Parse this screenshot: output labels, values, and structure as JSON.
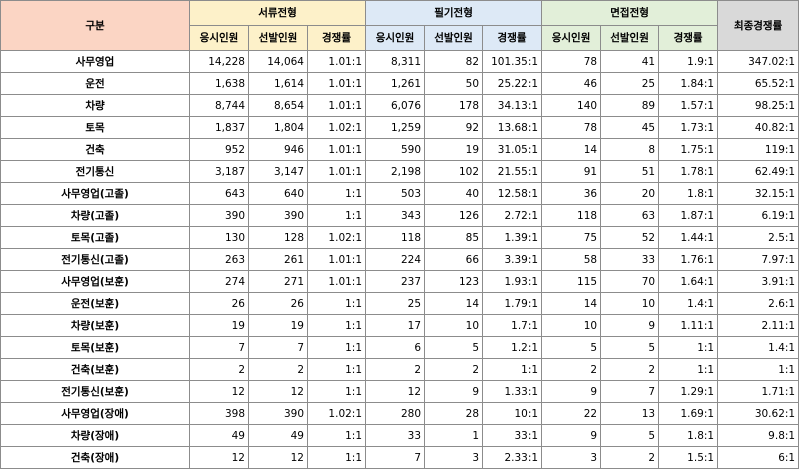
{
  "table": {
    "header": {
      "category": "구분",
      "groups": [
        "서류전형",
        "필기전형",
        "면접전형"
      ],
      "final": "최종경쟁률",
      "subcolumns": [
        "응시인원",
        "선발인원",
        "경쟁률"
      ]
    },
    "rows": [
      {
        "category": "사무영업",
        "doc": [
          "14,228",
          "14,064",
          "1.01:1"
        ],
        "written": [
          "8,311",
          "82",
          "101.35:1"
        ],
        "interview": [
          "78",
          "41",
          "1.9:1"
        ],
        "final": "347.02:1"
      },
      {
        "category": "운전",
        "doc": [
          "1,638",
          "1,614",
          "1.01:1"
        ],
        "written": [
          "1,261",
          "50",
          "25.22:1"
        ],
        "interview": [
          "46",
          "25",
          "1.84:1"
        ],
        "final": "65.52:1"
      },
      {
        "category": "차량",
        "doc": [
          "8,744",
          "8,654",
          "1.01:1"
        ],
        "written": [
          "6,076",
          "178",
          "34.13:1"
        ],
        "interview": [
          "140",
          "89",
          "1.57:1"
        ],
        "final": "98.25:1"
      },
      {
        "category": "토목",
        "doc": [
          "1,837",
          "1,804",
          "1.02:1"
        ],
        "written": [
          "1,259",
          "92",
          "13.68:1"
        ],
        "interview": [
          "78",
          "45",
          "1.73:1"
        ],
        "final": "40.82:1"
      },
      {
        "category": "건축",
        "doc": [
          "952",
          "946",
          "1.01:1"
        ],
        "written": [
          "590",
          "19",
          "31.05:1"
        ],
        "interview": [
          "14",
          "8",
          "1.75:1"
        ],
        "final": "119:1"
      },
      {
        "category": "전기통신",
        "doc": [
          "3,187",
          "3,147",
          "1.01:1"
        ],
        "written": [
          "2,198",
          "102",
          "21.55:1"
        ],
        "interview": [
          "91",
          "51",
          "1.78:1"
        ],
        "final": "62.49:1"
      },
      {
        "category": "사무영업(고졸)",
        "doc": [
          "643",
          "640",
          "1:1"
        ],
        "written": [
          "503",
          "40",
          "12.58:1"
        ],
        "interview": [
          "36",
          "20",
          "1.8:1"
        ],
        "final": "32.15:1"
      },
      {
        "category": "차량(고졸)",
        "doc": [
          "390",
          "390",
          "1:1"
        ],
        "written": [
          "343",
          "126",
          "2.72:1"
        ],
        "interview": [
          "118",
          "63",
          "1.87:1"
        ],
        "final": "6.19:1"
      },
      {
        "category": "토목(고졸)",
        "doc": [
          "130",
          "128",
          "1.02:1"
        ],
        "written": [
          "118",
          "85",
          "1.39:1"
        ],
        "interview": [
          "75",
          "52",
          "1.44:1"
        ],
        "final": "2.5:1"
      },
      {
        "category": "전기통신(고졸)",
        "doc": [
          "263",
          "261",
          "1.01:1"
        ],
        "written": [
          "224",
          "66",
          "3.39:1"
        ],
        "interview": [
          "58",
          "33",
          "1.76:1"
        ],
        "final": "7.97:1"
      },
      {
        "category": "사무영업(보훈)",
        "doc": [
          "274",
          "271",
          "1.01:1"
        ],
        "written": [
          "237",
          "123",
          "1.93:1"
        ],
        "interview": [
          "115",
          "70",
          "1.64:1"
        ],
        "final": "3.91:1"
      },
      {
        "category": "운전(보훈)",
        "doc": [
          "26",
          "26",
          "1:1"
        ],
        "written": [
          "25",
          "14",
          "1.79:1"
        ],
        "interview": [
          "14",
          "10",
          "1.4:1"
        ],
        "final": "2.6:1"
      },
      {
        "category": "차량(보훈)",
        "doc": [
          "19",
          "19",
          "1:1"
        ],
        "written": [
          "17",
          "10",
          "1.7:1"
        ],
        "interview": [
          "10",
          "9",
          "1.11:1"
        ],
        "final": "2.11:1"
      },
      {
        "category": "토목(보훈)",
        "doc": [
          "7",
          "7",
          "1:1"
        ],
        "written": [
          "6",
          "5",
          "1.2:1"
        ],
        "interview": [
          "5",
          "5",
          "1:1"
        ],
        "final": "1.4:1"
      },
      {
        "category": "건축(보훈)",
        "doc": [
          "2",
          "2",
          "1:1"
        ],
        "written": [
          "2",
          "2",
          "1:1"
        ],
        "interview": [
          "2",
          "2",
          "1:1"
        ],
        "final": "1:1"
      },
      {
        "category": "전기통신(보훈)",
        "doc": [
          "12",
          "12",
          "1:1"
        ],
        "written": [
          "12",
          "9",
          "1.33:1"
        ],
        "interview": [
          "9",
          "7",
          "1.29:1"
        ],
        "final": "1.71:1"
      },
      {
        "category": "사무영업(장애)",
        "doc": [
          "398",
          "390",
          "1.02:1"
        ],
        "written": [
          "280",
          "28",
          "10:1"
        ],
        "interview": [
          "22",
          "13",
          "1.69:1"
        ],
        "final": "30.62:1"
      },
      {
        "category": "차량(장애)",
        "doc": [
          "49",
          "49",
          "1:1"
        ],
        "written": [
          "33",
          "1",
          "33:1"
        ],
        "interview": [
          "9",
          "5",
          "1.8:1"
        ],
        "final": "9.8:1"
      },
      {
        "category": "건축(장애)",
        "doc": [
          "12",
          "12",
          "1:1"
        ],
        "written": [
          "7",
          "3",
          "2.33:1"
        ],
        "interview": [
          "3",
          "2",
          "1.5:1"
        ],
        "final": "6:1"
      }
    ]
  },
  "colors": {
    "category_header": "#fbd5c4",
    "document_header": "#fdf1c9",
    "written_header": "#dde9f6",
    "interview_header": "#e2efd9",
    "final_header": "#d9d9d9",
    "border": "#8c8c8c"
  }
}
